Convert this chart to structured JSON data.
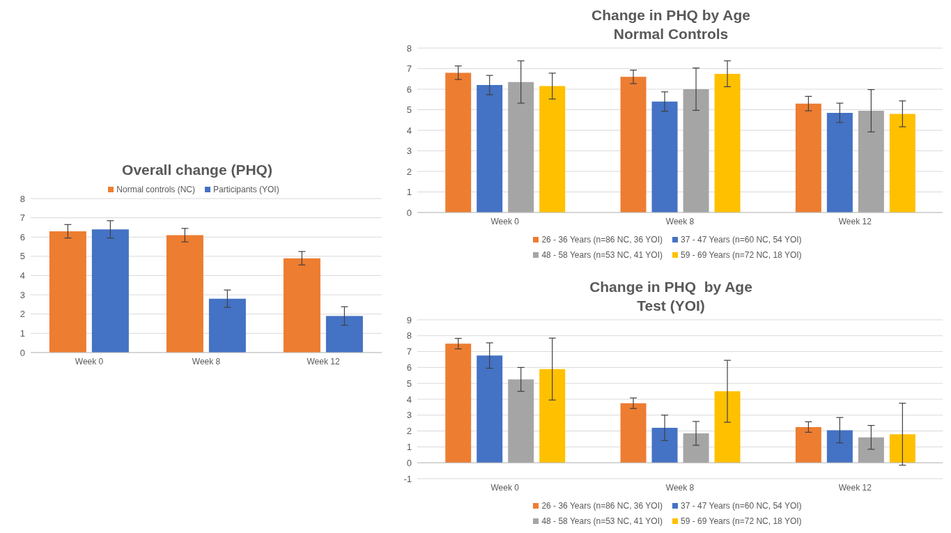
{
  "chart_data": [
    {
      "type": "bar",
      "title": "Overall change (PHQ)",
      "categories": [
        "Week 0",
        "Week 8",
        "Week 12"
      ],
      "series": [
        {
          "name": "Normal controls (NC)",
          "color": "#ed7d31",
          "values": [
            6.3,
            6.1,
            4.9
          ],
          "errors": [
            0.35,
            0.35,
            0.35
          ]
        },
        {
          "name": "Participants (YOI)",
          "color": "#4472c4",
          "values": [
            6.4,
            2.8,
            1.9
          ],
          "errors": [
            0.45,
            0.45,
            0.48
          ]
        }
      ],
      "ylim": [
        0,
        8
      ],
      "yticks": [
        0,
        1,
        2,
        3,
        4,
        5,
        6,
        7,
        8
      ],
      "grid": "y",
      "legend": "top"
    },
    {
      "type": "bar",
      "title": "Change in PHQ by Age",
      "subtitle": "Normal Controls",
      "categories": [
        "Week 0",
        "Week 8",
        "Week 12"
      ],
      "series": [
        {
          "name": "26 - 36 Years (n=86 NC, 36 YOI)",
          "color": "#ed7d31",
          "values": [
            6.8,
            6.6,
            5.3
          ],
          "errors": [
            0.33,
            0.33,
            0.35
          ]
        },
        {
          "name": "37 - 47 Years (n=60 NC, 54 YOI)",
          "color": "#4472c4",
          "values": [
            6.2,
            5.4,
            4.85
          ],
          "errors": [
            0.47,
            0.47,
            0.47
          ]
        },
        {
          "name": "48 - 58 Years (n=53 NC, 41 YOI)",
          "color": "#a5a5a5",
          "values": [
            6.35,
            6.0,
            4.95
          ],
          "errors": [
            1.03,
            1.03,
            1.03
          ]
        },
        {
          "name": "59 - 69 Years (n=72 NC, 18 YOI)",
          "color": "#ffc000",
          "values": [
            6.15,
            6.75,
            4.8
          ],
          "errors": [
            0.63,
            0.63,
            0.63
          ]
        }
      ],
      "ylim": [
        0,
        8
      ],
      "yticks": [
        0,
        1,
        2,
        3,
        4,
        5,
        6,
        7,
        8
      ],
      "grid": "y",
      "legend": "bottom"
    },
    {
      "type": "bar",
      "title": "Change in PHQ  by Age",
      "subtitle": "Test (YOI)",
      "categories": [
        "Week 0",
        "Week 8",
        "Week 12"
      ],
      "series": [
        {
          "name": "26 - 36 Years (n=86 NC, 36 YOI)",
          "color": "#ed7d31",
          "values": [
            7.5,
            3.75,
            2.25
          ],
          "errors": [
            0.33,
            0.33,
            0.33
          ]
        },
        {
          "name": "37 - 47 Years (n=60 NC, 54 YOI)",
          "color": "#4472c4",
          "values": [
            6.75,
            2.2,
            2.05
          ],
          "errors": [
            0.8,
            0.8,
            0.8
          ]
        },
        {
          "name": "48 - 58 Years (n=53 NC, 41 YOI)",
          "color": "#a5a5a5",
          "values": [
            5.25,
            1.85,
            1.6
          ],
          "errors": [
            0.75,
            0.75,
            0.75
          ]
        },
        {
          "name": "59 - 69 Years (n=72 NC, 18 YOI)",
          "color": "#ffc000",
          "values": [
            5.9,
            4.5,
            1.8
          ],
          "errors": [
            1.95,
            1.95,
            1.95
          ]
        }
      ],
      "ylim": [
        -1,
        9
      ],
      "yticks": [
        -1,
        0,
        1,
        2,
        3,
        4,
        5,
        6,
        7,
        8,
        9
      ],
      "grid": "y",
      "legend": "bottom"
    }
  ]
}
